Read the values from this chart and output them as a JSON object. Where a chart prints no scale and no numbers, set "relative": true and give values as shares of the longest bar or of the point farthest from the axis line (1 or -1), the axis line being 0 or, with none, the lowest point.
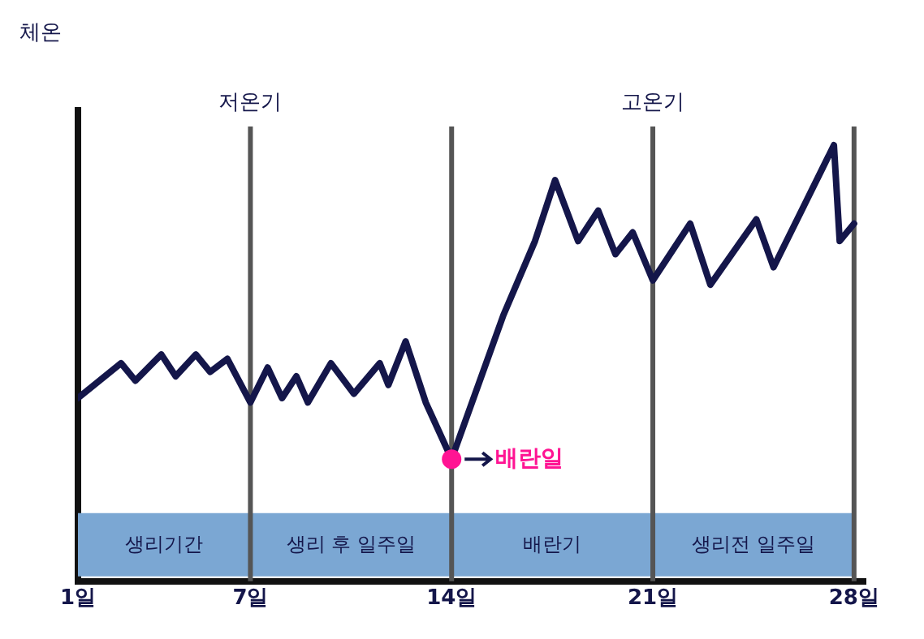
{
  "chart_data": {
    "type": "line",
    "relative": true,
    "ylabel": "체온",
    "x": [
      1,
      2.5,
      3.0,
      3.9,
      4.4,
      5.1,
      5.6,
      6.2,
      7,
      7.6,
      8.1,
      8.6,
      9.0,
      9.8,
      10.6,
      11.5,
      11.8,
      12.4,
      13.1,
      14,
      15.8,
      16.9,
      17.6,
      18.4,
      19.1,
      19.7,
      20.3,
      21,
      22.3,
      23.0,
      24.6,
      25.2,
      27.3,
      27.5,
      28
    ],
    "series": [
      {
        "color": "#14164a",
        "values": [
          0.42,
          0.5,
          0.46,
          0.52,
          0.47,
          0.52,
          0.48,
          0.51,
          0.41,
          0.49,
          0.42,
          0.47,
          0.41,
          0.5,
          0.43,
          0.5,
          0.45,
          0.55,
          0.41,
          0.28,
          0.61,
          0.78,
          0.92,
          0.78,
          0.85,
          0.75,
          0.8,
          0.69,
          0.82,
          0.68,
          0.83,
          0.72,
          1,
          0.78,
          0.82
        ]
      }
    ],
    "xlim": [
      1,
      28.4
    ],
    "xticks": [
      {
        "value": 1,
        "label": "1일"
      },
      {
        "value": 7,
        "label": "7일"
      },
      {
        "value": 14,
        "label": "14일"
      },
      {
        "value": 21,
        "label": "21일"
      },
      {
        "value": 28,
        "label": "28일"
      }
    ],
    "ref_lines": [
      {
        "axis": "x",
        "value": 7,
        "label": "저온기",
        "color": "#555555"
      },
      {
        "axis": "x",
        "value": 14,
        "color": "#555555"
      },
      {
        "axis": "x",
        "value": 21,
        "label": "고온기",
        "color": "#555555"
      },
      {
        "axis": "x",
        "value": 28,
        "color": "#555555"
      }
    ],
    "bands": [
      {
        "axis": "x",
        "from": 1,
        "to": 7,
        "label": "생리기간",
        "color": "#7ba7d3"
      },
      {
        "axis": "x",
        "from": 7,
        "to": 14,
        "label": "생리 후 일주일",
        "color": "#7ba7d3"
      },
      {
        "axis": "x",
        "from": 14,
        "to": 21,
        "label": "배란기",
        "color": "#7ba7d3"
      },
      {
        "axis": "x",
        "from": 21,
        "to": 28,
        "label": "생리전 일주일",
        "color": "#7ba7d3"
      }
    ],
    "annotations": [
      {
        "text": "배란일",
        "x": 14,
        "y": 0.28
      }
    ],
    "grid": false,
    "legend": false,
    "marker": "none",
    "line_style": "solid"
  }
}
